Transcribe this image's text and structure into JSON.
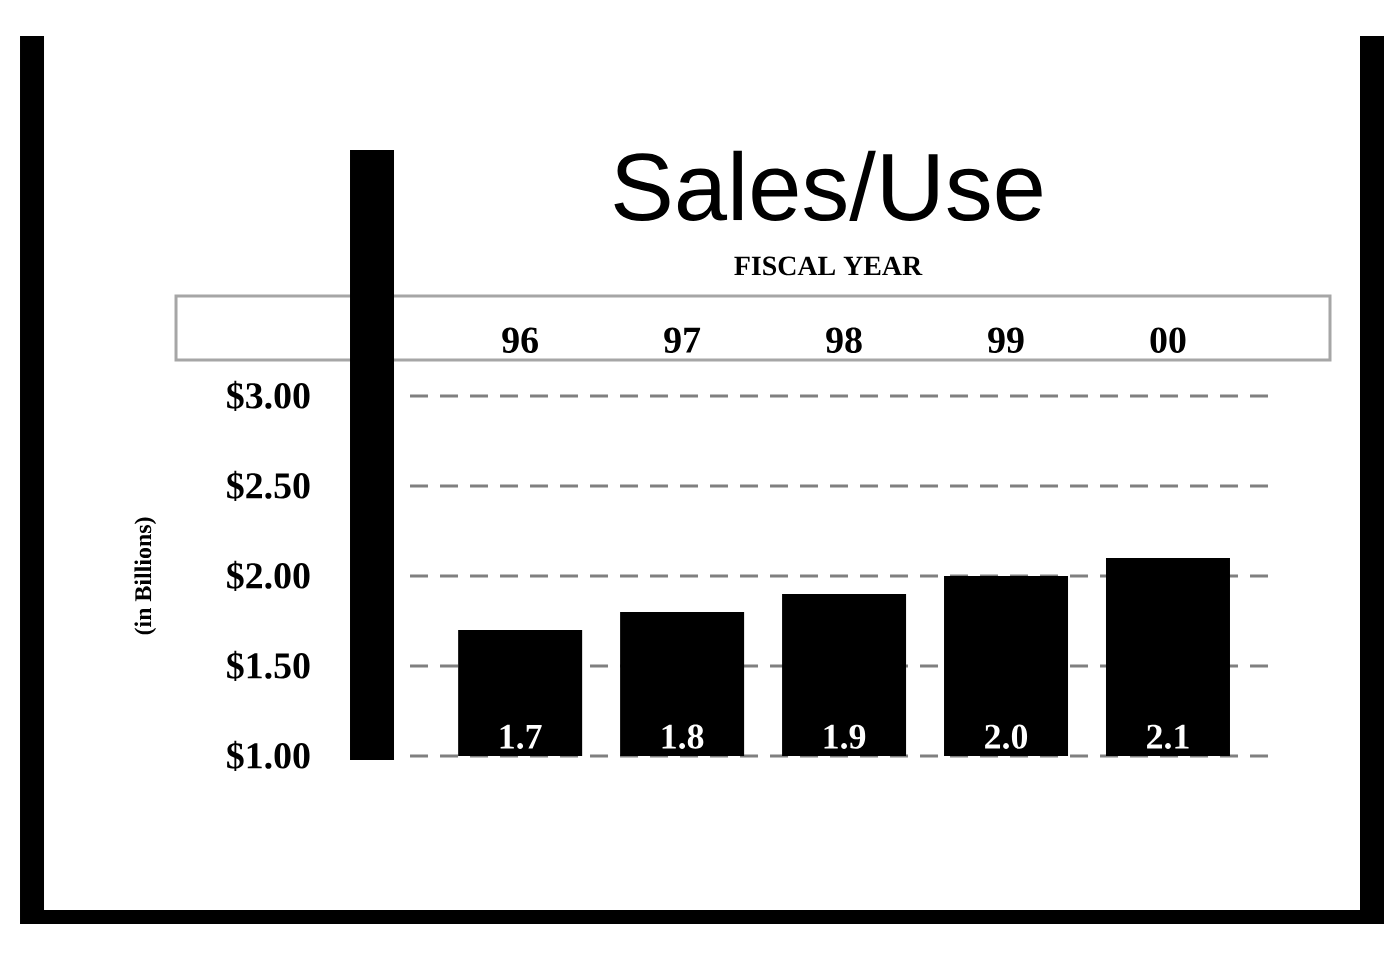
{
  "chart_data": {
    "type": "bar",
    "title": "Sales/Use",
    "subtitle": "FISCAL YEAR",
    "ylabel": "(in Billions)",
    "categories": [
      "96",
      "97",
      "98",
      "99",
      "00"
    ],
    "values": [
      1.7,
      1.8,
      1.9,
      2.0,
      2.1
    ],
    "value_labels": [
      "1.7",
      "1.8",
      "1.9",
      "2.0",
      "2.1"
    ],
    "color": "#000000",
    "ylim": [
      1.0,
      3.0
    ],
    "yticks": [
      {
        "value": 1.0,
        "label": "$1.00"
      },
      {
        "value": 1.5,
        "label": "$1.50"
      },
      {
        "value": 2.0,
        "label": "$2.00"
      },
      {
        "value": 2.5,
        "label": "$2.50"
      },
      {
        "value": 3.0,
        "label": "$3.00"
      }
    ],
    "grid": "y"
  }
}
